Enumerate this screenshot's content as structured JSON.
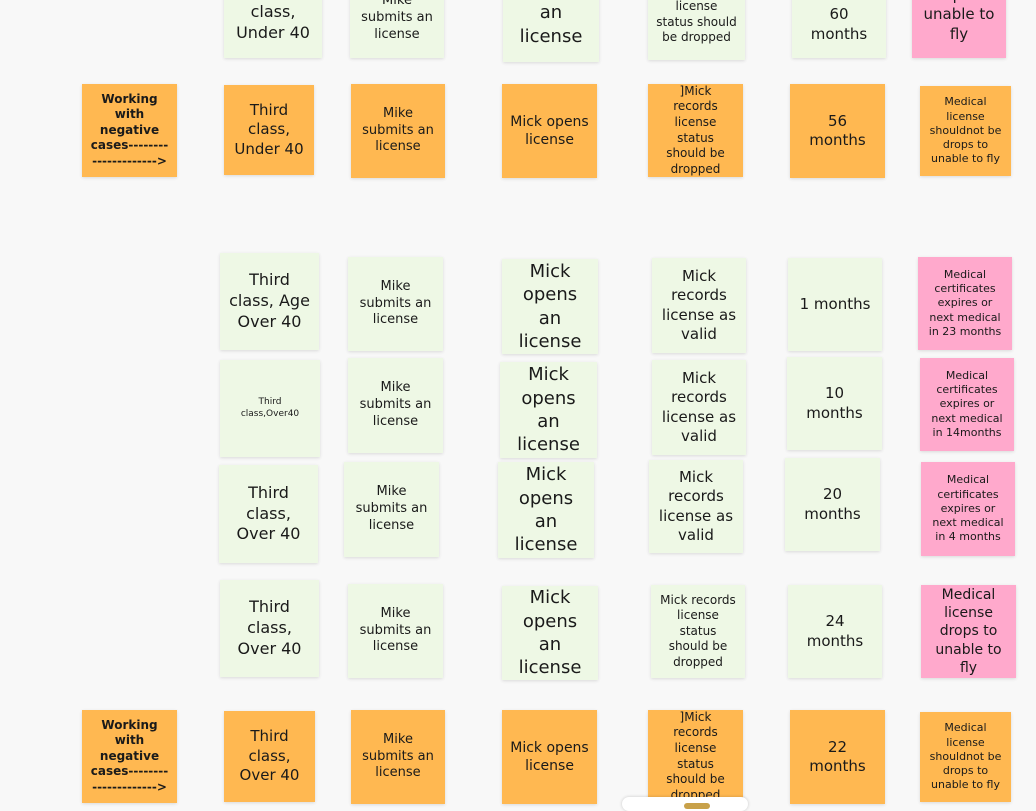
{
  "rows": [
    {
      "notes": [
        {
          "text": "class, Under 40"
        },
        {
          "text": "Mike submits an license"
        },
        {
          "text": "opens an license"
        },
        {
          "text": "license status should be dropped"
        },
        {
          "text": "60 months"
        },
        {
          "text": "drops to unable to fly"
        }
      ]
    },
    {
      "notes": [
        {
          "text": "Working with negative cases--------------------->"
        },
        {
          "text": "Third class, Under 40"
        },
        {
          "text": "Mike submits an license"
        },
        {
          "text": "Mick opens license"
        },
        {
          "text": "]Mick records license status should be dropped"
        },
        {
          "text": "56 months"
        },
        {
          "text": "Medical license shouldnot  be drops to unable to fly"
        }
      ]
    },
    {
      "notes": [
        {
          "text": "Third class, Age Over 40"
        },
        {
          "text": "Mike submits an license"
        },
        {
          "text": "Mick opens an license"
        },
        {
          "text": "Mick records license as valid"
        },
        {
          "text": "1 months"
        },
        {
          "text": "Medical certificates expires or next medical in 23 months"
        }
      ]
    },
    {
      "notes": [
        {
          "text": "Third class,Over40"
        },
        {
          "text": "Mike submits an license"
        },
        {
          "text": "Mick opens an license"
        },
        {
          "text": "Mick records license as valid"
        },
        {
          "text": "10 months"
        },
        {
          "text": "Medical certificates expires or next medical in 14months"
        }
      ]
    },
    {
      "notes": [
        {
          "text": "Third class, Over 40"
        },
        {
          "text": "Mike submits an license"
        },
        {
          "text": "Mick opens an license"
        },
        {
          "text": "Mick records license as valid"
        },
        {
          "text": "20 months"
        },
        {
          "text": "Medical certificates expires or next medical in 4 months"
        }
      ]
    },
    {
      "notes": [
        {
          "text": "Third class, Over 40"
        },
        {
          "text": "Mike submits an license"
        },
        {
          "text": "Mick opens an license"
        },
        {
          "text": "Mick records license status should be dropped"
        },
        {
          "text": "24 months"
        },
        {
          "text": "Medical license drops to unable to fly"
        }
      ]
    },
    {
      "notes": [
        {
          "text": "Working with negative cases--------------------->"
        },
        {
          "text": "Third class, Over 40"
        },
        {
          "text": "Mike submits an license"
        },
        {
          "text": "Mick opens license"
        },
        {
          "text": "]Mick records license status should be dropped"
        },
        {
          "text": "22 months"
        },
        {
          "text": "Medical license shouldnot  be drops to unable to fly"
        }
      ]
    }
  ]
}
